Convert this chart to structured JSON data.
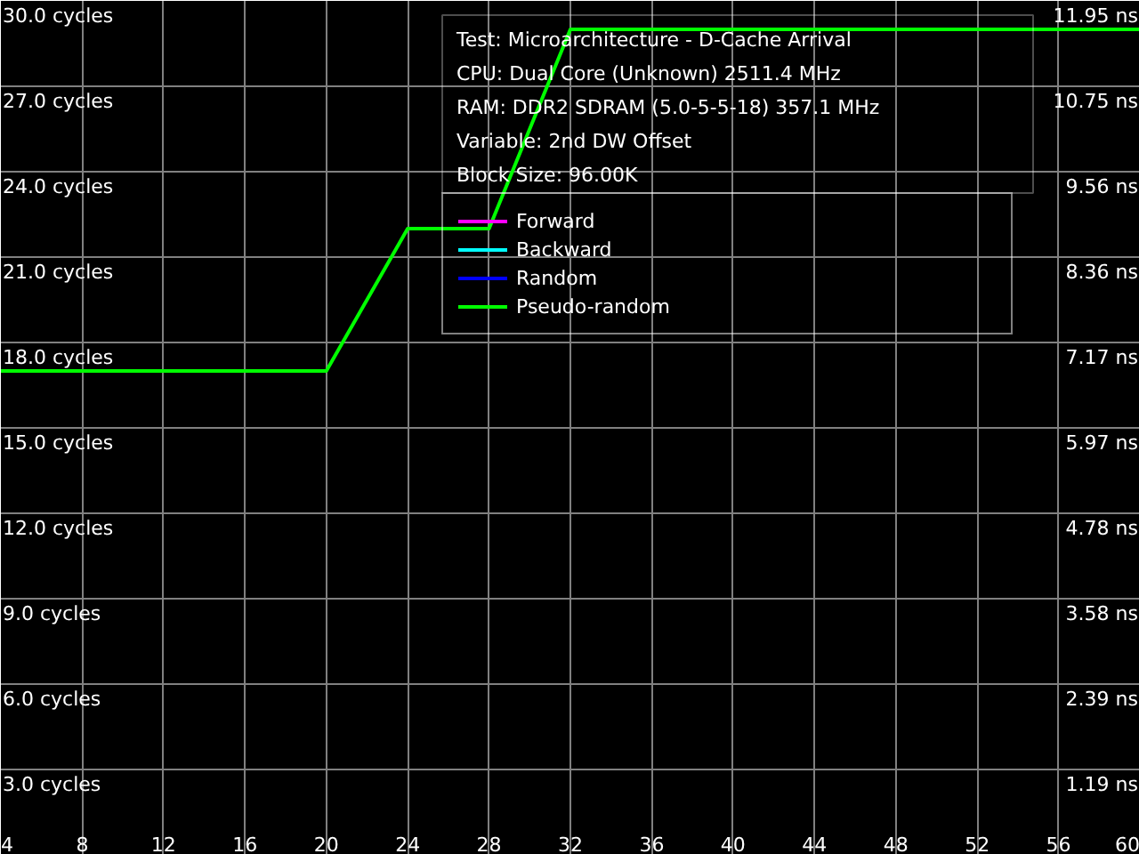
{
  "chart_data": {
    "type": "line",
    "title": "Test: Microarchitecture - D-Cache Arrival",
    "annotations": [
      "CPU: Dual Core (Unknown) 2511.4 MHz",
      "RAM: DDR2 SDRAM (5.0-5-5-18) 357.1 MHz",
      "Variable: 2nd DW Offset",
      "Block Size: 96.00K"
    ],
    "x": [
      4,
      8,
      12,
      16,
      20,
      24,
      28,
      32,
      36,
      40,
      44,
      48,
      52,
      56,
      60
    ],
    "xlim": [
      4,
      60
    ],
    "xticks": [
      4,
      8,
      12,
      16,
      20,
      24,
      28,
      32,
      36,
      40,
      44,
      48,
      52,
      56,
      60
    ],
    "ylim": [
      0,
      30
    ],
    "yticks": [
      {
        "value": 3,
        "label": "3.0 cycles"
      },
      {
        "value": 6,
        "label": "6.0 cycles"
      },
      {
        "value": 9,
        "label": "9.0 cycles"
      },
      {
        "value": 12,
        "label": "12.0 cycles"
      },
      {
        "value": 15,
        "label": "15.0 cycles"
      },
      {
        "value": 18,
        "label": "18.0 cycles"
      },
      {
        "value": 21,
        "label": "21.0 cycles"
      },
      {
        "value": 24,
        "label": "24.0 cycles"
      },
      {
        "value": 27,
        "label": "27.0 cycles"
      },
      {
        "value": 30,
        "label": "30.0 cycles"
      }
    ],
    "y2lim": [
      0,
      11.95
    ],
    "y2ticks": [
      {
        "value": 1.19,
        "label": "1.19 ns"
      },
      {
        "value": 2.39,
        "label": "2.39 ns"
      },
      {
        "value": 3.58,
        "label": "3.58 ns"
      },
      {
        "value": 4.78,
        "label": "4.78 ns"
      },
      {
        "value": 5.97,
        "label": "5.97 ns"
      },
      {
        "value": 7.17,
        "label": "7.17 ns"
      },
      {
        "value": 8.36,
        "label": "8.36 ns"
      },
      {
        "value": 9.56,
        "label": "9.56 ns"
      },
      {
        "value": 10.75,
        "label": "10.75 ns"
      },
      {
        "value": 11.95,
        "label": "11.95 ns"
      }
    ],
    "grid": true,
    "legend": "top right",
    "marker": "none",
    "line_style": "solid",
    "series": [
      {
        "name": "Forward",
        "color": "#ff00ff",
        "values": [
          null,
          null,
          null,
          null,
          null,
          null,
          null,
          null,
          null,
          null,
          null,
          null,
          null,
          null,
          null
        ]
      },
      {
        "name": "Backward",
        "color": "#00ffff",
        "values": [
          null,
          null,
          null,
          null,
          null,
          null,
          null,
          null,
          null,
          null,
          null,
          null,
          null,
          null,
          null
        ]
      },
      {
        "name": "Random",
        "color": "#0000ff",
        "values": [
          null,
          null,
          null,
          null,
          null,
          null,
          null,
          null,
          null,
          null,
          null,
          null,
          null,
          null,
          null
        ]
      },
      {
        "name": "Pseudo-random",
        "color": "#00ff00",
        "values": [
          17,
          17,
          17,
          17,
          17,
          22,
          22,
          29,
          29,
          29,
          29,
          29,
          29,
          29,
          29
        ]
      }
    ]
  }
}
